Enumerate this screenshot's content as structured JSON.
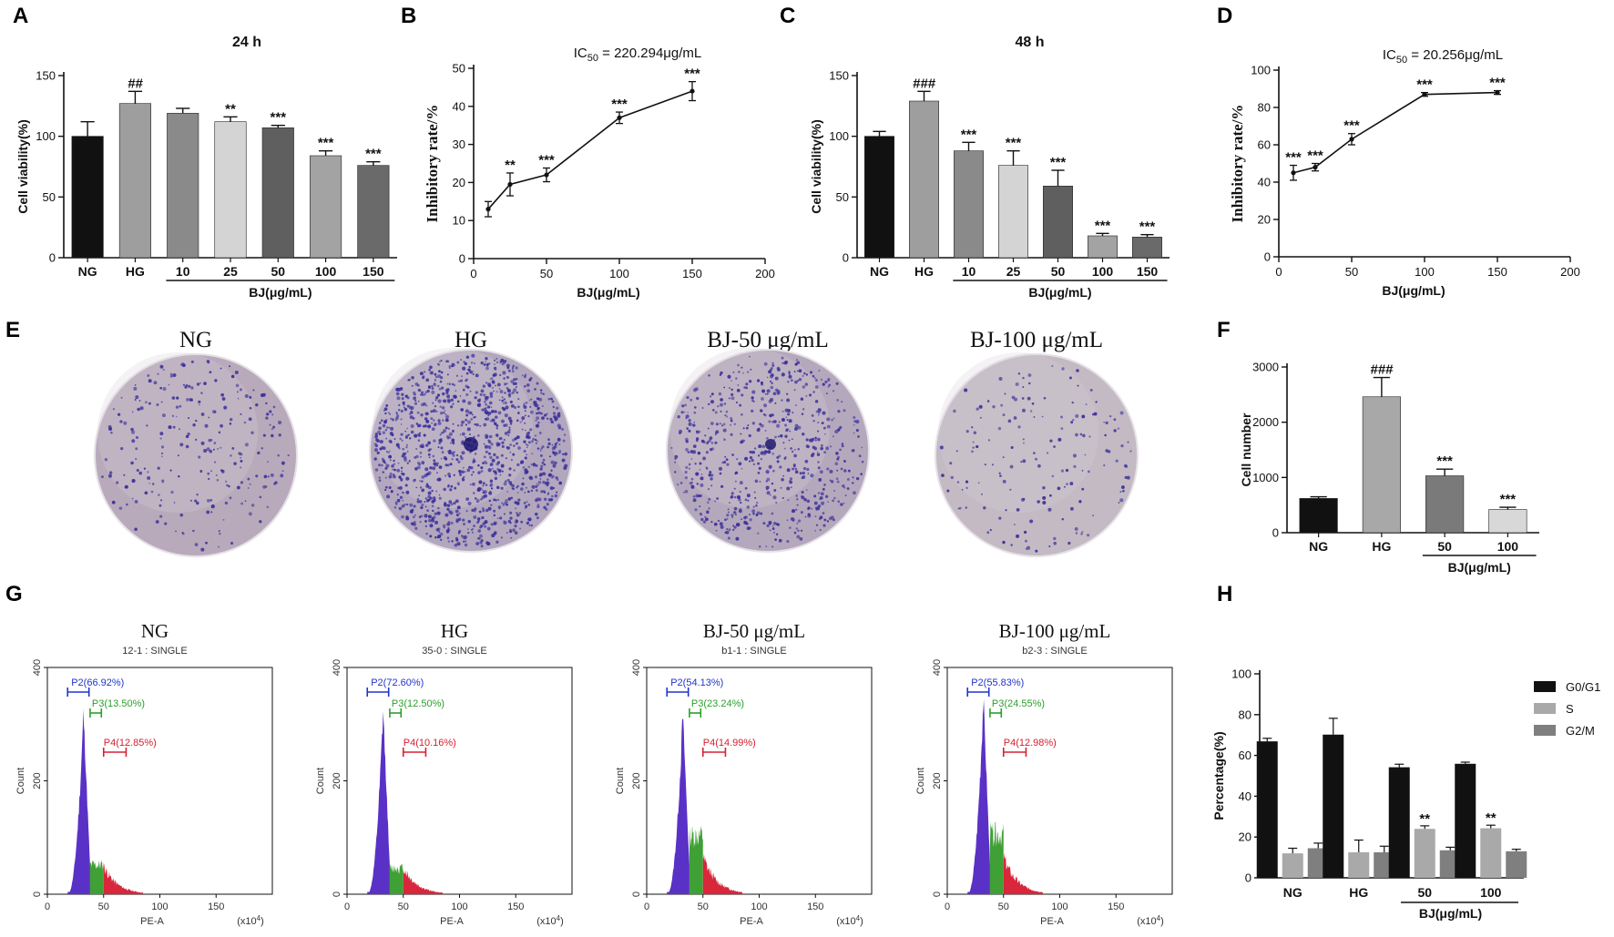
{
  "panel_labels": [
    "A",
    "B",
    "C",
    "D",
    "E",
    "F",
    "G",
    "H"
  ],
  "chart_data": [
    {
      "id": "A",
      "type": "bar",
      "title": "24 h",
      "ylabel": "Cell viability(%)",
      "xlabel": "BJ(μg/mL)",
      "ylim": [
        0,
        150
      ],
      "yticks": [
        0,
        50,
        100,
        150
      ],
      "categories": [
        "NG",
        "HG",
        "10",
        "25",
        "50",
        "100",
        "150"
      ],
      "values": [
        100,
        127,
        119,
        112,
        107,
        84,
        76
      ],
      "errors": [
        12,
        10,
        4,
        4,
        2,
        4,
        3
      ],
      "colors": [
        "#111111",
        "#9e9e9e",
        "#8a8a8a",
        "#d4d4d4",
        "#5f5f5f",
        "#a3a3a3",
        "#6a6a6a"
      ],
      "annotations": [
        "",
        "##",
        "",
        "**",
        "***",
        "***",
        "***"
      ]
    },
    {
      "id": "B",
      "type": "line",
      "title": "IC",
      "title_sub": "50",
      "title_suffix": " = 220.294μg/mL",
      "ylabel": "Inhibitory rate/%",
      "xlabel": "BJ(μg/mL)",
      "xlim": [
        0,
        200
      ],
      "xticks": [
        0,
        50,
        100,
        150,
        200
      ],
      "ylim": [
        0,
        50
      ],
      "yticks": [
        0,
        10,
        20,
        30,
        40,
        50
      ],
      "x": [
        10,
        25,
        50,
        100,
        150
      ],
      "y": [
        13,
        19.5,
        22,
        37,
        44
      ],
      "errors": [
        2,
        3,
        1.8,
        1.5,
        2.5
      ],
      "annotations": [
        "",
        "**",
        "***",
        "***",
        "***"
      ]
    },
    {
      "id": "C",
      "type": "bar",
      "title": "48 h",
      "ylabel": "Cell viability(%)",
      "xlabel": "BJ(μg/mL)",
      "ylim": [
        0,
        150
      ],
      "yticks": [
        0,
        50,
        100,
        150
      ],
      "categories": [
        "NG",
        "HG",
        "10",
        "25",
        "50",
        "100",
        "150"
      ],
      "values": [
        100,
        129,
        88,
        76,
        59,
        18,
        17
      ],
      "errors": [
        4,
        8,
        7,
        12,
        13,
        2,
        2
      ],
      "colors": [
        "#111111",
        "#9e9e9e",
        "#8a8a8a",
        "#d4d4d4",
        "#5f5f5f",
        "#a3a3a3",
        "#6a6a6a"
      ],
      "annotations": [
        "",
        "###",
        "***",
        "***",
        "***",
        "***",
        "***"
      ]
    },
    {
      "id": "D",
      "type": "line",
      "title": "IC",
      "title_sub": "50",
      "title_suffix": " = 20.256μg/mL",
      "ylabel": "Inhibitory rate/%",
      "xlabel": "BJ(μg/mL)",
      "xlim": [
        0,
        200
      ],
      "xticks": [
        0,
        50,
        100,
        150,
        200
      ],
      "ylim": [
        0,
        100
      ],
      "yticks": [
        0,
        20,
        40,
        60,
        80,
        100
      ],
      "x": [
        10,
        25,
        50,
        100,
        150
      ],
      "y": [
        45,
        48,
        63,
        87,
        88
      ],
      "errors": [
        4,
        2,
        3,
        1,
        1
      ],
      "annotations": [
        "***",
        "***",
        "***",
        "***",
        "***"
      ]
    },
    {
      "id": "F",
      "type": "bar",
      "ylabel": "Cell number",
      "xlabel": "BJ(μg/mL)",
      "ylim": [
        0,
        3000
      ],
      "yticks": [
        0,
        1000,
        2000,
        3000
      ],
      "categories": [
        "NG",
        "HG",
        "50",
        "100"
      ],
      "values": [
        620,
        2460,
        1030,
        420
      ],
      "errors": [
        30,
        350,
        120,
        40
      ],
      "colors": [
        "#111111",
        "#a8a8a8",
        "#7a7a7a",
        "#d8d8d8"
      ],
      "annotations": [
        "",
        "###",
        "***",
        "***"
      ]
    },
    {
      "id": "H",
      "type": "bar",
      "ylabel": "Percentage(%)",
      "xlabel": "BJ(μg/mL)",
      "ylim": [
        0,
        100
      ],
      "yticks": [
        0,
        20,
        40,
        60,
        80,
        100
      ],
      "categories": [
        "NG",
        "HG",
        "50",
        "100"
      ],
      "series": [
        {
          "name": "G0/G1",
          "color": "#111111",
          "values": [
            66.9,
            70.2,
            54.2,
            55.9
          ],
          "errors": [
            1.5,
            8,
            1.5,
            0.8
          ]
        },
        {
          "name": "S",
          "color": "#a9a9a9",
          "values": [
            12,
            12.5,
            24,
            24.3
          ],
          "errors": [
            2.5,
            6,
            1.5,
            1.5
          ],
          "annotations": [
            "",
            "",
            "**",
            "**"
          ]
        },
        {
          "name": "G2/M",
          "color": "#7f7f7f",
          "values": [
            14.5,
            12.5,
            13.5,
            13
          ],
          "errors": [
            2.5,
            3,
            1.5,
            1
          ]
        }
      ]
    }
  ],
  "plates": [
    {
      "label": "NG",
      "bg": "#b8aabb",
      "density": 260
    },
    {
      "label": "HG",
      "bg": "#b2a7bd",
      "density": 1200
    },
    {
      "label": "BJ-50 μg/mL",
      "bg": "#b4a8bc",
      "density": 650
    },
    {
      "label": "BJ-100 μg/mL",
      "bg": "#c3bac3",
      "density": 170
    }
  ],
  "flow": [
    {
      "title": "NG",
      "sample": "12-1 : SINGLE",
      "p2": "P2(66.92%)",
      "p3": "P3(13.50%)",
      "p4": "P4(12.85%)",
      "peak": 340,
      "s_level": 0.16,
      "g2_level": 0.15
    },
    {
      "title": "HG",
      "sample": "35-0 : SINGLE",
      "p2": "P2(72.60%)",
      "p3": "P3(12.50%)",
      "p4": "P4(10.16%)",
      "peak": 345,
      "s_level": 0.14,
      "g2_level": 0.14
    },
    {
      "title": "BJ-50 μg/mL",
      "sample": "b1-1 : SINGLE",
      "p2": "P2(54.13%)",
      "p3": "P3(23.24%)",
      "p4": "P4(14.99%)",
      "peak": 340,
      "s_level": 0.32,
      "g2_level": 0.2
    },
    {
      "title": "BJ-100 μg/mL",
      "sample": "b2-3 : SINGLE",
      "p2": "P2(55.83%)",
      "p3": "P3(24.55%)",
      "p4": "P4(12.98%)",
      "peak": 370,
      "s_level": 0.3,
      "g2_level": 0.18
    }
  ],
  "flow_axes": {
    "xlabel": "PE-A",
    "xunit": "(x10",
    "xunit_exp": "4",
    "xunit_close": ")",
    "ylabel": "Count",
    "xticks": [
      0,
      50,
      100,
      150
    ],
    "yticks": [
      0,
      200,
      400
    ],
    "colors": {
      "p2": "#5a31c6",
      "p3": "#3fa035",
      "p4": "#d8263a",
      "p2_label": "#2233cc",
      "p3_label": "#2aa02a",
      "p4_label": "#d62030"
    }
  }
}
